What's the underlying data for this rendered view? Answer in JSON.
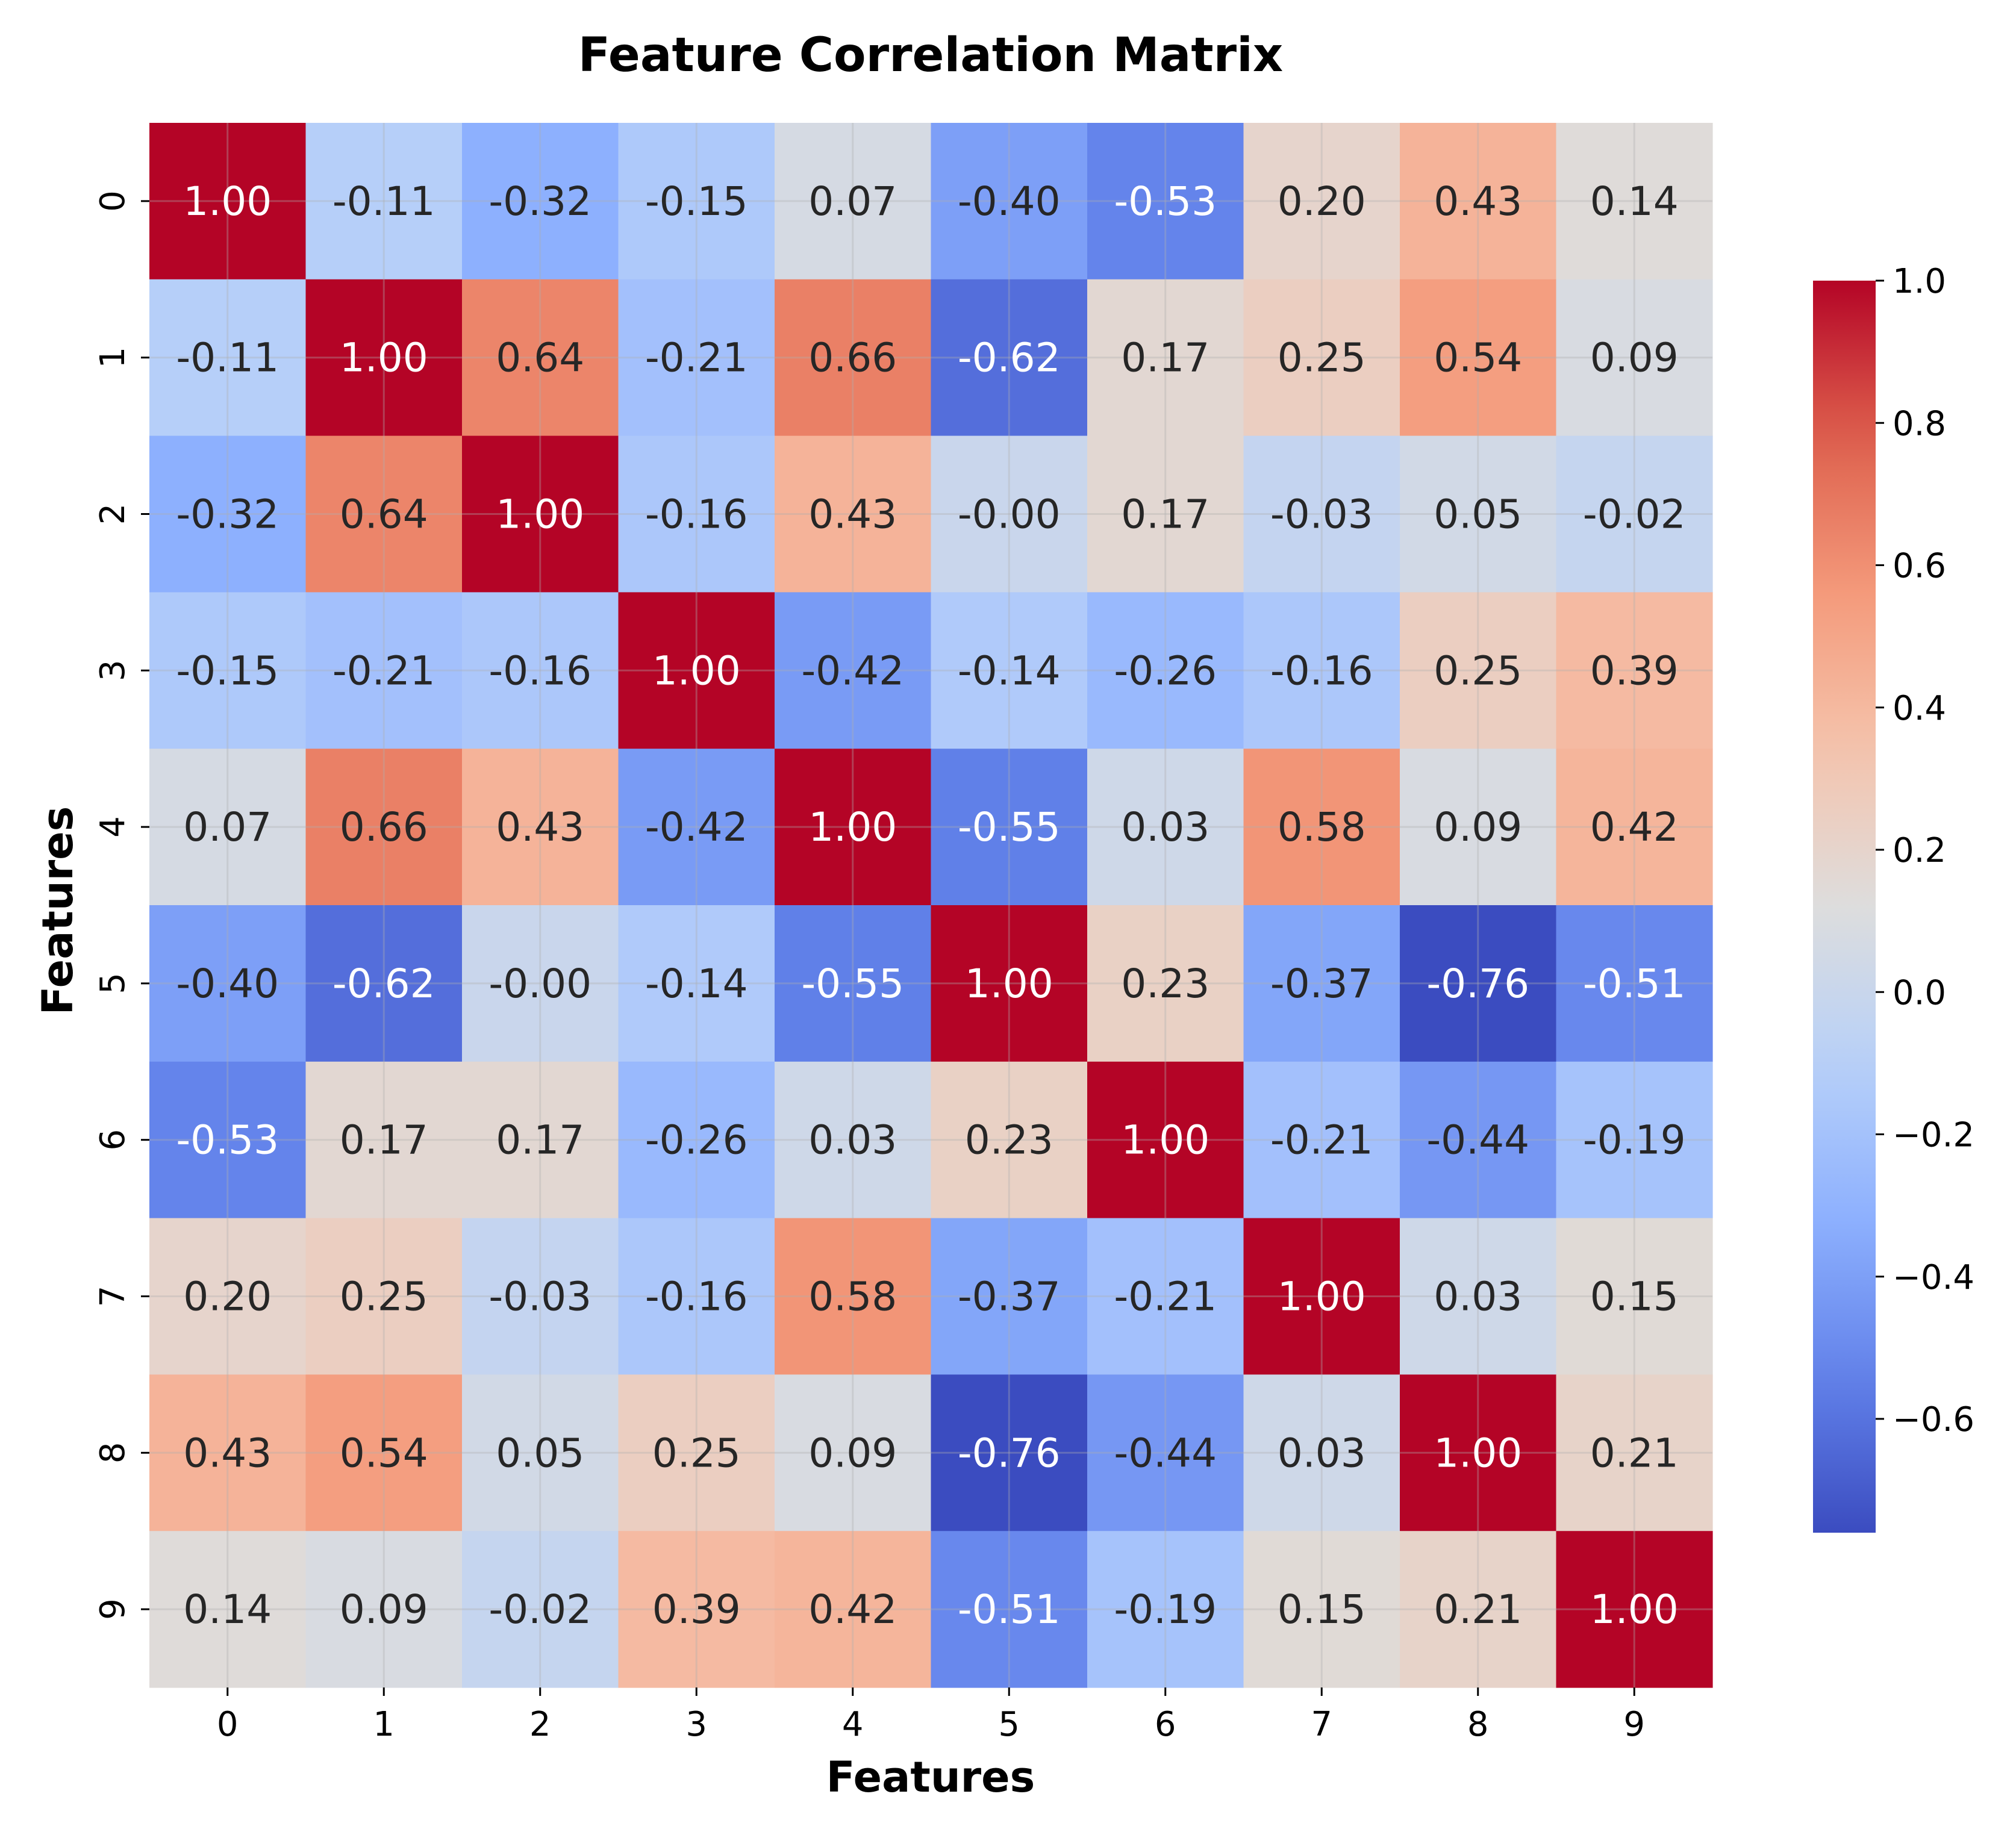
{
  "chart_data": {
    "type": "heatmap",
    "title": "Feature Correlation Matrix",
    "xlabel": "Features",
    "ylabel": "Features",
    "x_categories": [
      "0",
      "1",
      "2",
      "3",
      "4",
      "5",
      "6",
      "7",
      "8",
      "9"
    ],
    "y_categories": [
      "0",
      "1",
      "2",
      "3",
      "4",
      "5",
      "6",
      "7",
      "8",
      "9"
    ],
    "values": [
      [
        1.0,
        -0.11,
        -0.32,
        -0.15,
        0.07,
        -0.4,
        -0.53,
        0.2,
        0.43,
        0.14
      ],
      [
        -0.11,
        1.0,
        0.64,
        -0.21,
        0.66,
        -0.62,
        0.17,
        0.25,
        0.54,
        0.09
      ],
      [
        -0.32,
        0.64,
        1.0,
        -0.16,
        0.43,
        -0.0,
        0.17,
        -0.03,
        0.05,
        -0.02
      ],
      [
        -0.15,
        -0.21,
        -0.16,
        1.0,
        -0.42,
        -0.14,
        -0.26,
        -0.16,
        0.25,
        0.39
      ],
      [
        0.07,
        0.66,
        0.43,
        -0.42,
        1.0,
        -0.55,
        0.03,
        0.58,
        0.09,
        0.42
      ],
      [
        -0.4,
        -0.62,
        -0.0,
        -0.14,
        -0.55,
        1.0,
        0.23,
        -0.37,
        -0.76,
        -0.51
      ],
      [
        -0.53,
        0.17,
        0.17,
        -0.26,
        0.03,
        0.23,
        1.0,
        -0.21,
        -0.44,
        -0.19
      ],
      [
        0.2,
        0.25,
        -0.03,
        -0.16,
        0.58,
        -0.37,
        -0.21,
        1.0,
        0.03,
        0.15
      ],
      [
        0.43,
        0.54,
        0.05,
        0.25,
        0.09,
        -0.76,
        -0.44,
        0.03,
        1.0,
        0.21
      ],
      [
        0.14,
        0.09,
        -0.02,
        0.39,
        0.42,
        -0.51,
        -0.19,
        0.15,
        0.21,
        1.0
      ]
    ],
    "annotation_format": "2 decimals",
    "colormap": "coolwarm",
    "color_range": [
      -0.76,
      1.0
    ],
    "grid": true,
    "colorbar": {
      "position": "right",
      "ticks": [
        -0.6,
        -0.4,
        -0.2,
        0.0,
        0.2,
        0.4,
        0.6,
        0.8,
        1.0
      ],
      "tick_labels": [
        "−0.6",
        "−0.4",
        "−0.2",
        "0.0",
        "0.2",
        "0.4",
        "0.6",
        "0.8",
        "1.0"
      ]
    }
  }
}
